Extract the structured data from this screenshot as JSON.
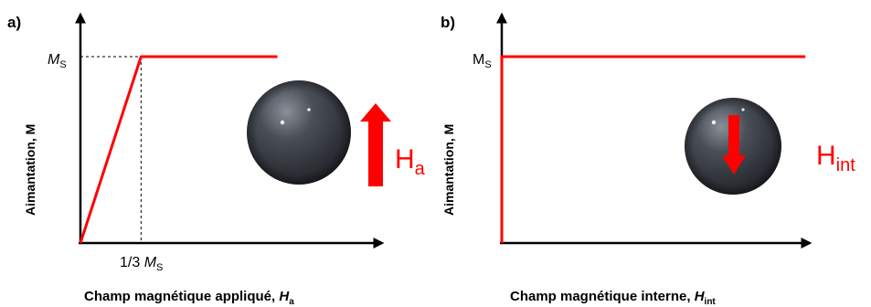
{
  "colors": {
    "curve": "#ff0000",
    "axis": "#000000",
    "arrow": "#ff1a1a",
    "sphere": "#3b3f46"
  },
  "chart_data": [
    {
      "type": "line",
      "panel_label": "a)",
      "ylabel": "Aimantation, M",
      "xlabel_text": "Champ magnétique appliqué, ",
      "xlabel_symbol": "H",
      "xlabel_subscript": "a",
      "y_tick_main": "M",
      "y_tick_sub": "S",
      "x_tick_prefix": "1/3 ",
      "x_tick_main": "M",
      "x_tick_sub": "S",
      "xlim": [
        0,
        1.083
      ],
      "ylim": [
        0,
        1.1
      ],
      "x_unit": "M_S",
      "y_unit": "M_S",
      "series": [
        {
          "x": [
            0,
            0.3333,
            1.083
          ],
          "y": [
            0,
            1,
            1
          ]
        }
      ],
      "guides": {
        "x": 0.3333,
        "y": 1,
        "style": "dashed"
      },
      "field": {
        "label_main": "H",
        "label_sub": "a",
        "direction": "up"
      }
    },
    {
      "type": "line",
      "panel_label": "b)",
      "ylabel": "Aimantation, M",
      "xlabel_text": "Champ magnétique interne, ",
      "xlabel_symbol": "H",
      "xlabel_subscript": "int",
      "y_tick_main": "M",
      "y_tick_sub": "S",
      "xlim": [
        0,
        1.1
      ],
      "ylim": [
        0,
        1.1
      ],
      "x_unit": "M_S",
      "y_unit": "M_S",
      "series": [
        {
          "x": [
            0,
            0,
            1.1
          ],
          "y": [
            0,
            1,
            1
          ]
        }
      ],
      "field": {
        "label_main": "H",
        "label_sub": "int",
        "direction": "down"
      }
    }
  ]
}
